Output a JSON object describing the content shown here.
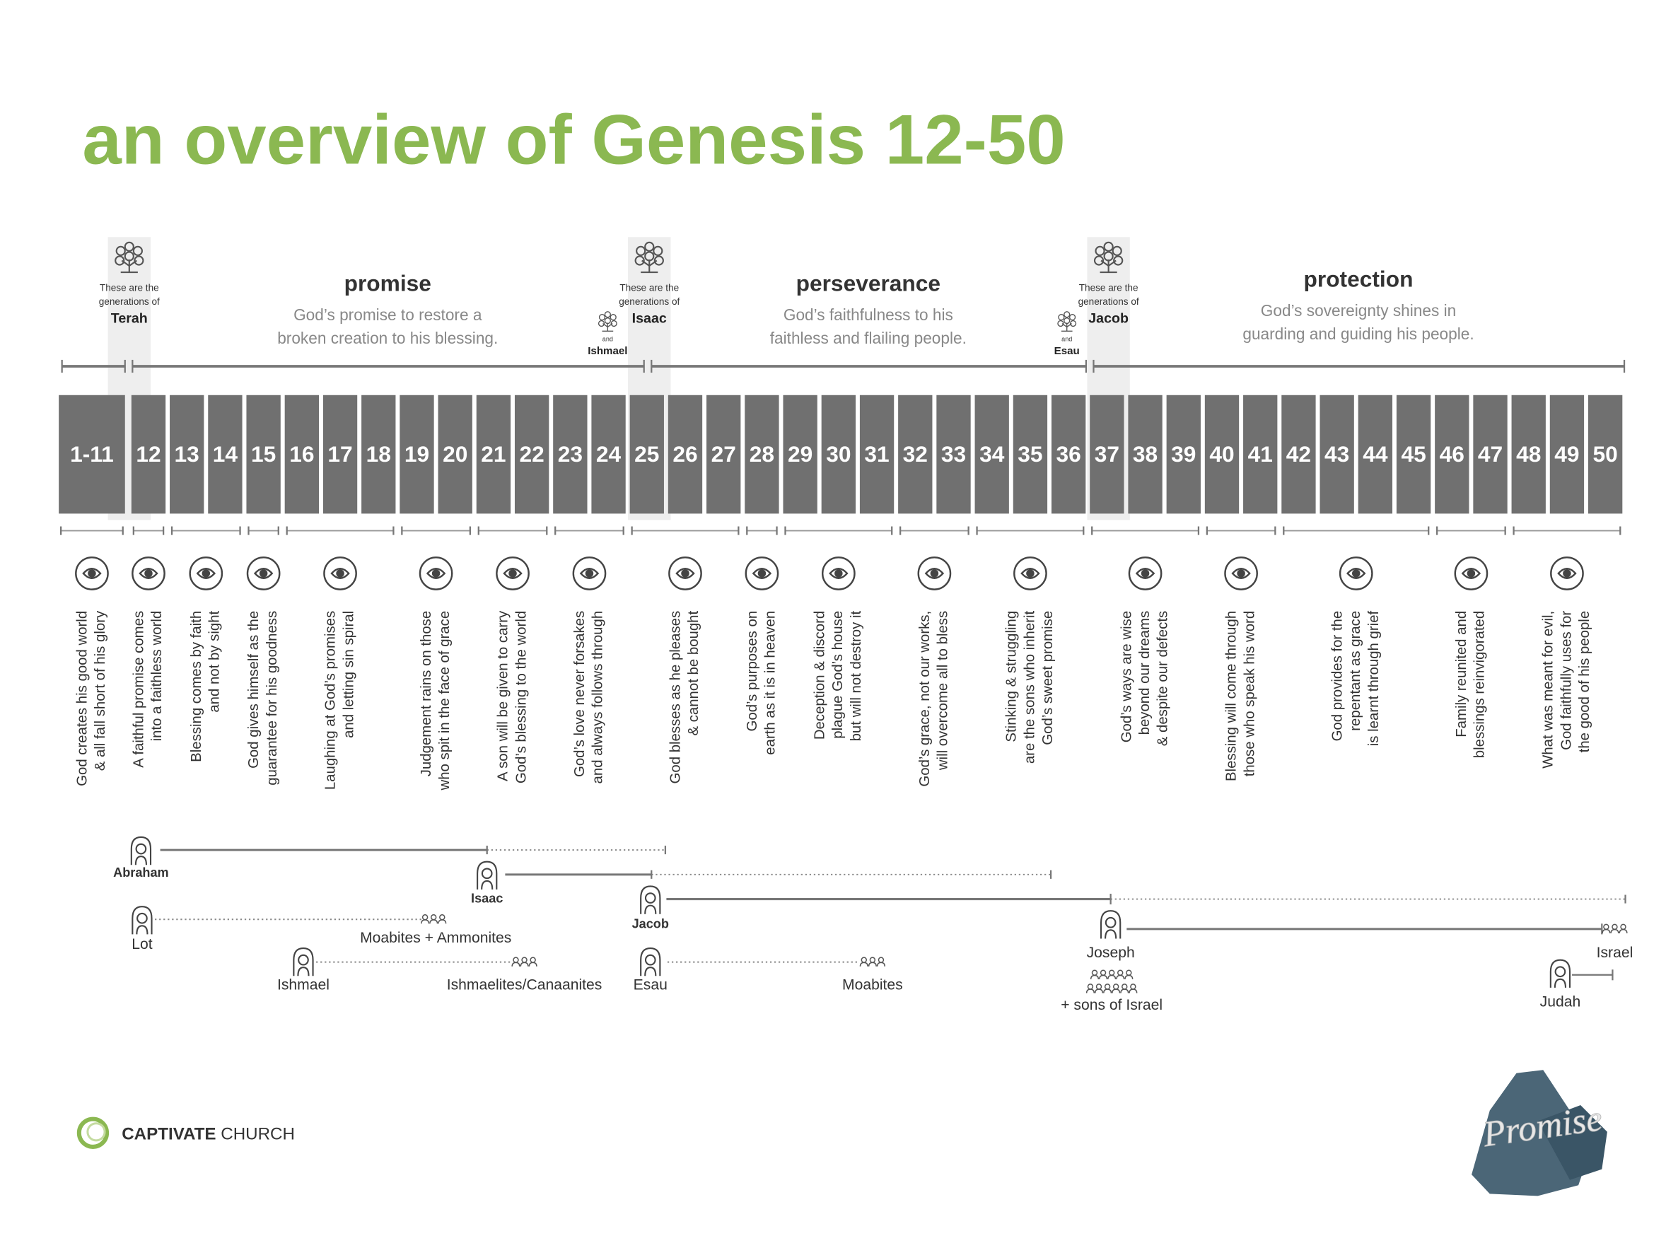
{
  "title": "an overview of Genesis 12-50",
  "sections": [
    {
      "heading": "promise",
      "description": [
        "God’s promise to restore a",
        "broken creation to his blessing."
      ]
    },
    {
      "heading": "perseverance",
      "description": [
        "God’s faithfulness to his",
        "faithless and flailing people."
      ]
    },
    {
      "heading": "protection",
      "description": [
        "God’s sovereignty shines in",
        "guarding and guiding his people."
      ]
    }
  ],
  "generations": [
    {
      "intro": [
        "These are the",
        "generations of"
      ],
      "name": "Terah"
    },
    {
      "intro": [
        "These are the",
        "generations of"
      ],
      "name": "Isaac",
      "also": {
        "conjunction": "and",
        "name": "Ishmael"
      }
    },
    {
      "intro": [
        "These are the",
        "generations of"
      ],
      "name": "Jacob",
      "also": {
        "conjunction": "and",
        "name": "Esau"
      }
    }
  ],
  "chapters": [
    "1-11",
    "12",
    "13",
    "14",
    "15",
    "16",
    "17",
    "18",
    "19",
    "20",
    "21",
    "22",
    "23",
    "24",
    "25",
    "26",
    "27",
    "28",
    "29",
    "30",
    "31",
    "32",
    "33",
    "34",
    "35",
    "36",
    "37",
    "38",
    "39",
    "40",
    "41",
    "42",
    "43",
    "44",
    "45",
    "46",
    "47",
    "48",
    "49",
    "50"
  ],
  "themes": [
    {
      "lines": [
        "God creates his good world",
        "& all fall short of his glory"
      ]
    },
    {
      "lines": [
        "A faithful promise comes",
        "into a faithless world"
      ]
    },
    {
      "lines": [
        "Blessing comes by faith",
        "and not by sight"
      ]
    },
    {
      "lines": [
        "God gives himself as the",
        "guarantee for his goodness"
      ]
    },
    {
      "lines": [
        "Laughing at God’s promises",
        "and letting sin spiral"
      ]
    },
    {
      "lines": [
        "Judgement rains on those",
        "who spit in the face of grace"
      ]
    },
    {
      "lines": [
        "A son will be given to carry",
        "God’s blessing to the world"
      ]
    },
    {
      "lines": [
        "God’s love never forsakes",
        "and always follows through"
      ]
    },
    {
      "lines": [
        "God blesses as he pleases",
        "& cannot be bought"
      ]
    },
    {
      "lines": [
        "God’s purposes on",
        "earth as it is in heaven"
      ]
    },
    {
      "lines": [
        "Deception & discord",
        "plague God’s house",
        "but will not destroy it"
      ]
    },
    {
      "lines": [
        "God’s grace, not our works,",
        "will overcome all to bless"
      ]
    },
    {
      "lines": [
        "Stinking & struggling",
        "are the sons who inherit",
        "God’s sweet promise"
      ]
    },
    {
      "lines": [
        "God’s ways are wise",
        "beyond our dreams",
        "& despite our defects"
      ]
    },
    {
      "lines": [
        "Blessing will come through",
        "those who speak his word"
      ]
    },
    {
      "lines": [
        "God provides for the",
        "repentant as grace",
        "is learnt through grief"
      ]
    },
    {
      "lines": [
        "Family reunited and",
        "blessings reinvigorated"
      ]
    },
    {
      "lines": [
        "What was meant for evil,",
        "God faithfully uses for",
        "the good of his people"
      ]
    }
  ],
  "people": [
    "Abraham",
    "Isaac",
    "Jacob",
    "Joseph",
    "Judah",
    "Lot",
    "Ishmael",
    "Esau"
  ],
  "peoples": [
    "Israel",
    "Moabites + Ammonites",
    "Ishmaelites/Canaanites",
    "Moabites",
    "+ sons of Israel"
  ],
  "footer": {
    "organization": [
      "CAPTIVATE",
      "CHURCH"
    ],
    "series_logo": "Promise"
  }
}
